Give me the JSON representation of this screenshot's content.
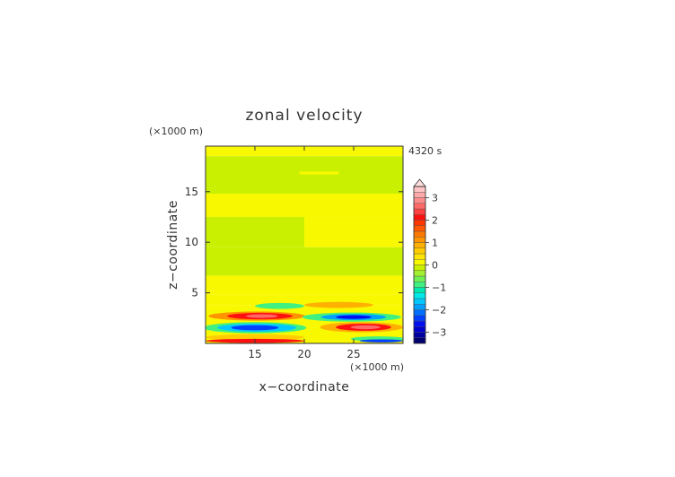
{
  "chart_data": {
    "type": "heatmap",
    "title": "zonal velocity",
    "xlabel": "x−coordinate",
    "ylabel": "z−coordinate",
    "x_unit": "(×1000 m)",
    "y_unit": "(×1000 m)",
    "time_label": "4320 s",
    "xlim": [
      10,
      30
    ],
    "ylim": [
      0,
      19.5
    ],
    "x_ticks": [
      "15",
      "20",
      "25"
    ],
    "x_tick_values": [
      15,
      20,
      25
    ],
    "y_ticks": [
      "5",
      "10",
      "15"
    ],
    "y_tick_values": [
      5,
      10,
      15
    ],
    "colorbar": {
      "levels": [
        -3.5,
        -3.25,
        -3,
        -2.75,
        -2.5,
        -2.25,
        -2,
        -1.75,
        -1.5,
        -1.25,
        -1,
        -0.75,
        -0.5,
        -0.25,
        0,
        0.25,
        0.5,
        0.75,
        1,
        1.25,
        1.5,
        1.75,
        2,
        2.25,
        2.5,
        2.75,
        3,
        3.25,
        3.5
      ],
      "tick_labels": [
        "3",
        "2",
        "1",
        "0",
        "−1",
        "−2",
        "−3"
      ],
      "tick_values": [
        3,
        2,
        1,
        0,
        -1,
        -2,
        -3
      ],
      "colors": [
        "#000070",
        "#0000a0",
        "#0000d0",
        "#0010f0",
        "#0040ff",
        "#0070ff",
        "#00a0ff",
        "#00c8ff",
        "#00e8e8",
        "#00e8b0",
        "#40f080",
        "#70f050",
        "#a0f030",
        "#c8f000",
        "#f8f800",
        "#ffe400",
        "#ffcc00",
        "#ffb000",
        "#ff9400",
        "#ff7800",
        "#ff5800",
        "#ff3800",
        "#ff1010",
        "#ff4040",
        "#ff6868",
        "#ff8c8c",
        "#ffa8a8",
        "#ffc4c4"
      ],
      "extend": "max"
    },
    "fields": [
      {
        "z_range": [
          18.5,
          19.5
        ],
        "x_range": [
          10,
          30
        ],
        "value": 0.1
      },
      {
        "z_range": [
          14.8,
          18.5
        ],
        "x_range": [
          10,
          30
        ],
        "value": -0.2
      },
      {
        "z_range": [
          16.7,
          17.0
        ],
        "x_range": [
          19.5,
          23.5
        ],
        "value": 0.1
      },
      {
        "z_range": [
          12.5,
          14.8
        ],
        "x_range": [
          10,
          30
        ],
        "value": 0.1
      },
      {
        "z_range": [
          9.5,
          12.5
        ],
        "x_range": [
          10,
          20
        ],
        "value": -0.2
      },
      {
        "z_range": [
          9.5,
          12.5
        ],
        "x_range": [
          20,
          30
        ],
        "value": 0.1
      },
      {
        "z_range": [
          6.7,
          9.5
        ],
        "x_range": [
          10,
          30
        ],
        "value": -0.2
      },
      {
        "z_range": [
          4.8,
          6.7
        ],
        "x_range": [
          10,
          30
        ],
        "value": 0.1
      },
      {
        "z_range": [
          3.8,
          4.8
        ],
        "x_range": [
          10,
          30
        ],
        "value": 0.05
      },
      {
        "z_range": [
          0,
          3.8
        ],
        "x_range": [
          10,
          30
        ],
        "value": 0.1
      }
    ],
    "features": [
      {
        "type": "ellipse",
        "x_center": 15.2,
        "z_center": 2.7,
        "x_radius": 4.9,
        "z_radius": 0.45,
        "value": 1.0
      },
      {
        "type": "ellipse",
        "x_center": 15.5,
        "z_center": 2.7,
        "x_radius": 3.3,
        "z_radius": 0.32,
        "value": 2.0
      },
      {
        "type": "ellipse",
        "x_center": 15.7,
        "z_center": 2.7,
        "x_radius": 1.6,
        "z_radius": 0.18,
        "value": 2.6
      },
      {
        "type": "ellipse",
        "x_center": 15.0,
        "z_center": 1.55,
        "x_radius": 5.2,
        "z_radius": 0.55,
        "value": -0.8
      },
      {
        "type": "ellipse",
        "x_center": 15.2,
        "z_center": 1.55,
        "x_radius": 4.0,
        "z_radius": 0.4,
        "value": -1.6
      },
      {
        "type": "ellipse",
        "x_center": 15.0,
        "z_center": 1.55,
        "x_radius": 2.4,
        "z_radius": 0.25,
        "value": -2.5
      },
      {
        "type": "ellipse",
        "x_center": 17.5,
        "z_center": 3.7,
        "x_radius": 2.5,
        "z_radius": 0.3,
        "value": -0.8
      },
      {
        "type": "ellipse",
        "x_center": 15.0,
        "z_center": 0.6,
        "x_radius": 5.0,
        "z_radius": 0.3,
        "value": 0.7
      },
      {
        "type": "ellipse",
        "x_center": 15.0,
        "z_center": 0.25,
        "x_radius": 5.0,
        "z_radius": 0.2,
        "value": 2.0
      },
      {
        "type": "ellipse",
        "x_center": 24.8,
        "z_center": 2.6,
        "x_radius": 5.0,
        "z_radius": 0.45,
        "value": -1.0
      },
      {
        "type": "ellipse",
        "x_center": 25.0,
        "z_center": 2.6,
        "x_radius": 3.3,
        "z_radius": 0.3,
        "value": -2.0
      },
      {
        "type": "ellipse",
        "x_center": 25.0,
        "z_center": 2.6,
        "x_radius": 1.8,
        "z_radius": 0.18,
        "value": -2.7
      },
      {
        "type": "ellipse",
        "x_center": 25.8,
        "z_center": 1.6,
        "x_radius": 4.2,
        "z_radius": 0.5,
        "value": 0.9
      },
      {
        "type": "ellipse",
        "x_center": 26.0,
        "z_center": 1.6,
        "x_radius": 2.8,
        "z_radius": 0.35,
        "value": 2.0
      },
      {
        "type": "ellipse",
        "x_center": 26.2,
        "z_center": 1.6,
        "x_radius": 1.5,
        "z_radius": 0.2,
        "value": 2.7
      },
      {
        "type": "ellipse",
        "x_center": 23.5,
        "z_center": 3.8,
        "x_radius": 3.5,
        "z_radius": 0.3,
        "value": 0.8
      },
      {
        "type": "ellipse",
        "x_center": 27.5,
        "z_center": 0.45,
        "x_radius": 2.8,
        "z_radius": 0.25,
        "value": -0.8
      },
      {
        "type": "ellipse",
        "x_center": 27.8,
        "z_center": 0.25,
        "x_radius": 2.2,
        "z_radius": 0.15,
        "value": -2.5
      }
    ]
  }
}
